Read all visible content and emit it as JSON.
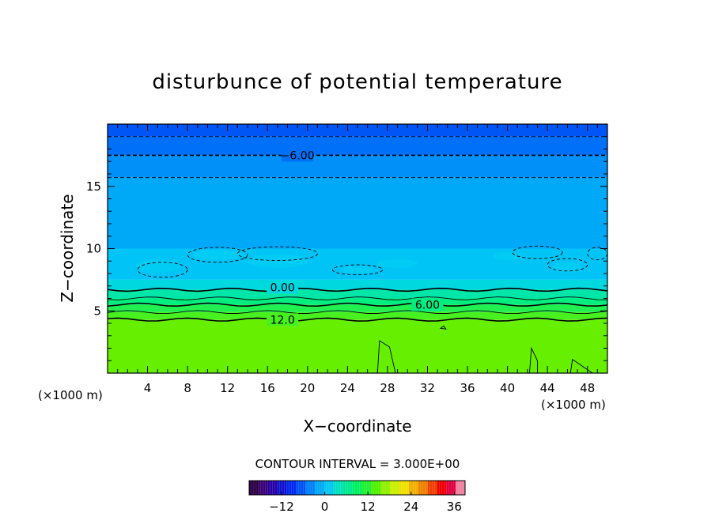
{
  "chart_data": {
    "type": "heatmap",
    "title": "disturbunce of potential temperature",
    "xlabel": "X−coordinate",
    "ylabel": "Z−coordinate",
    "x_unit_left": "(×1000 m)",
    "x_unit_right": "(×1000 m)",
    "xlim": [
      0,
      50
    ],
    "ylim": [
      0,
      20
    ],
    "x_ticks": [
      4,
      8,
      12,
      16,
      20,
      24,
      28,
      32,
      36,
      40,
      44,
      48
    ],
    "y_ticks": [
      5,
      10,
      15
    ],
    "contour_interval_text": "CONTOUR INTERVAL = 3.000E+00",
    "contour_labels": [
      {
        "text": "−6.00",
        "x": 19,
        "z": 17.5
      },
      {
        "text": "0.00",
        "x": 17.5,
        "z": 6.9
      },
      {
        "text": "6.00",
        "x": 32,
        "z": 5.5
      },
      {
        "text": "12.0",
        "x": 17.5,
        "z": 4.3
      }
    ],
    "horizontal_contours": [
      {
        "z": 19.0,
        "level": -9,
        "style": "dashed"
      },
      {
        "z": 17.5,
        "level": -6,
        "style": "dashed"
      },
      {
        "z": 15.7,
        "level": -3,
        "style": "dashed"
      },
      {
        "z": 6.7,
        "level": 0,
        "style": "solid"
      },
      {
        "z": 6.0,
        "level": 3,
        "style": "solid"
      },
      {
        "z": 5.5,
        "level": 6,
        "style": "solid"
      },
      {
        "z": 4.9,
        "level": 9,
        "style": "solid"
      },
      {
        "z": 4.3,
        "level": 12,
        "style": "solid"
      }
    ],
    "bands": [
      {
        "z0": 19.0,
        "z1": 20.0,
        "color": "#0055f5"
      },
      {
        "z0": 17.5,
        "z1": 19.0,
        "color": "#0070f8"
      },
      {
        "z0": 15.7,
        "z1": 17.5,
        "color": "#0090f8"
      },
      {
        "z0": 10.0,
        "z1": 15.7,
        "color": "#00a8f8"
      },
      {
        "z0": 7.5,
        "z1": 10.0,
        "color": "#00c4f6"
      },
      {
        "z0": 6.7,
        "z1": 7.5,
        "color": "#00d8e0"
      },
      {
        "z0": 6.0,
        "z1": 6.7,
        "color": "#00e6a8"
      },
      {
        "z0": 5.5,
        "z1": 6.0,
        "color": "#00ee80"
      },
      {
        "z0": 4.9,
        "z1": 5.5,
        "color": "#20f050"
      },
      {
        "z0": 4.3,
        "z1": 4.9,
        "color": "#48f020"
      },
      {
        "z0": 0.0,
        "z1": 4.3,
        "color": "#66f000"
      }
    ],
    "colorbar": {
      "min": -21,
      "max": 39,
      "step": 3,
      "ticks": [
        -12,
        0,
        12,
        24,
        36
      ],
      "colors": [
        "#2a0044",
        "#3a0078",
        "#2800a8",
        "#1010d0",
        "#0028f0",
        "#0050f8",
        "#0080f8",
        "#00a8f8",
        "#00c8f0",
        "#00e0c0",
        "#00e890",
        "#00f060",
        "#20f030",
        "#50f000",
        "#90f000",
        "#c8f000",
        "#f0e000",
        "#f0b000",
        "#f08000",
        "#f04000",
        "#f00000",
        "#e00040",
        "#f080a0"
      ]
    }
  }
}
